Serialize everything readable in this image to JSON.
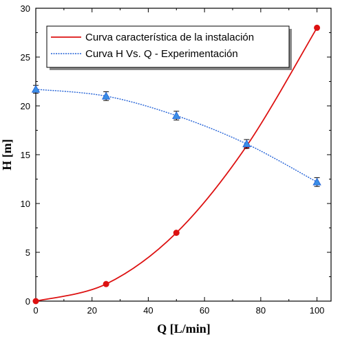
{
  "chart_data": {
    "type": "line",
    "xlabel": "Q [L/min]",
    "ylabel": "H [m]",
    "xlim": [
      0,
      105
    ],
    "ylim": [
      0,
      30
    ],
    "x_ticks": [
      0,
      20,
      40,
      60,
      80,
      100
    ],
    "y_ticks": [
      0,
      5,
      10,
      15,
      20,
      25,
      30
    ],
    "legend_position": "top-right",
    "grid": false,
    "series": [
      {
        "name": "Curva característica de la instalación",
        "style": "solid",
        "marker": "circle",
        "color": "#dd1111",
        "x": [
          0,
          25,
          50,
          75,
          100
        ],
        "y": [
          0,
          1.75,
          7.0,
          15.9,
          28.0
        ]
      },
      {
        "name": "Curva H Vs. Q - Experimentación",
        "style": "dotted",
        "marker": "triangle",
        "color": "#1f5fd6",
        "x": [
          0,
          25,
          50,
          75,
          100
        ],
        "y": [
          21.7,
          21.0,
          19.0,
          16.1,
          12.2
        ],
        "error": [
          0.4,
          0.45,
          0.45,
          0.45,
          0.45
        ]
      }
    ]
  }
}
